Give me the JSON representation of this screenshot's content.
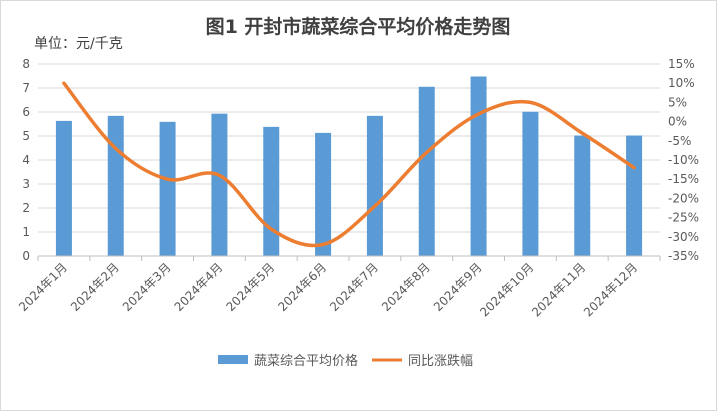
{
  "chart_data": {
    "type": "bar+line",
    "title": "图1  开封市蔬菜综合平均价格走势图",
    "ylabel": "单位：元/千克",
    "categories": [
      "2024年1月",
      "2024年2月",
      "2024年3月",
      "2024年4月",
      "2024年5月",
      "2024年6月",
      "2024年7月",
      "2024年8月",
      "2024年9月",
      "2024年10月",
      "2024年11月",
      "2024年12月"
    ],
    "series": [
      {
        "name": "蔬菜综合平均价格",
        "type": "bar",
        "axis": "left",
        "color": "#5B9BD5",
        "values": [
          5.63,
          5.84,
          5.59,
          5.93,
          5.38,
          5.13,
          5.84,
          7.05,
          7.48,
          6.01,
          5.02,
          5.02
        ]
      },
      {
        "name": "同比涨跌幅",
        "type": "line",
        "axis": "right",
        "color": "#ED7D31",
        "values": [
          10,
          -7,
          -15,
          -14,
          -28,
          -32,
          -22,
          -8,
          2,
          5,
          -3,
          -12
        ]
      }
    ],
    "ylim_left": [
      0,
      8
    ],
    "yticks_left": [
      "0",
      "1",
      "2",
      "3",
      "4",
      "5",
      "6",
      "7",
      "8"
    ],
    "ylim_right": [
      -35,
      15
    ],
    "yticks_right": [
      "-35%",
      "-30%",
      "-25%",
      "-20%",
      "-15%",
      "-10%",
      "-5%",
      "0%",
      "5%",
      "10%",
      "15%"
    ],
    "grid": true,
    "legend": "bottom"
  }
}
